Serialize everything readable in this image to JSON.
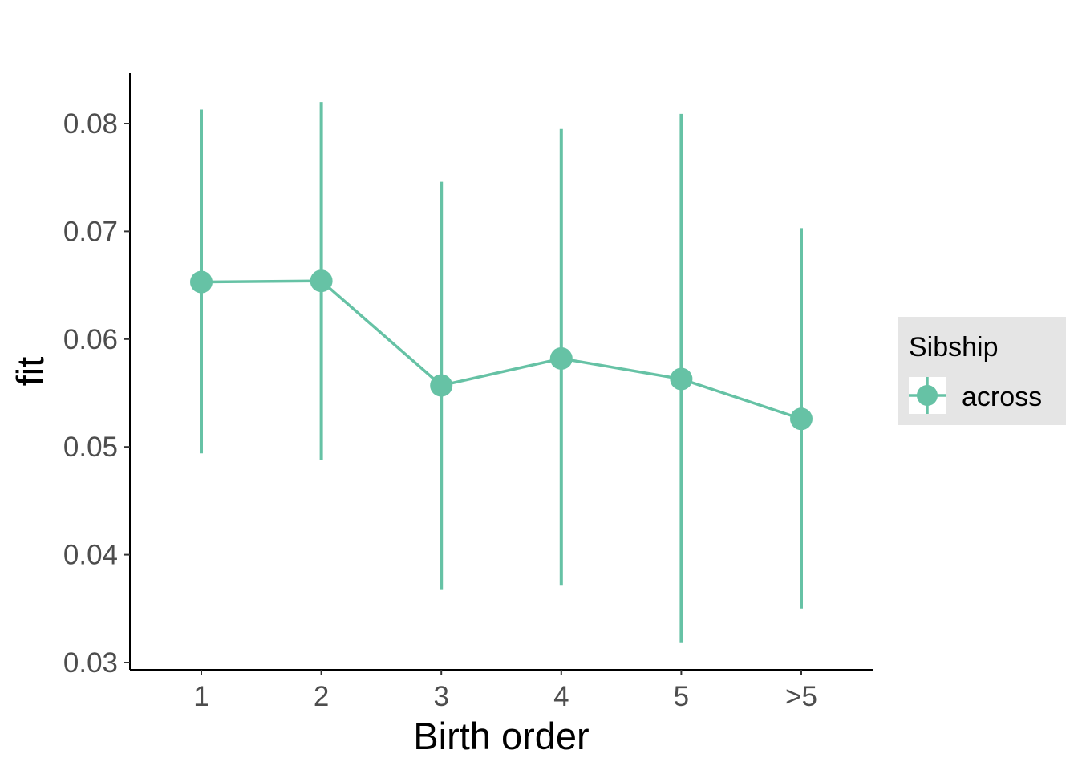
{
  "chart_data": {
    "type": "line",
    "xlabel": "Birth order",
    "ylabel": "fit",
    "categories": [
      "1",
      "2",
      "3",
      "4",
      "5",
      ">5"
    ],
    "ylim": [
      0.029,
      0.0844
    ],
    "yticks": [
      0.03,
      0.04,
      0.05,
      0.06,
      0.07,
      0.08
    ],
    "ytick_labels": [
      "0.03",
      "0.04",
      "0.05",
      "0.06",
      "0.07",
      "0.08"
    ],
    "grid": false,
    "legend": {
      "title": "Sibship",
      "position": "right"
    },
    "series": [
      {
        "name": "across",
        "color": "#66c2a5",
        "values": [
          0.0653,
          0.0654,
          0.0557,
          0.0582,
          0.0563,
          0.0526
        ],
        "lower": [
          0.0494,
          0.0488,
          0.0368,
          0.0372,
          0.0318,
          0.035
        ],
        "upper": [
          0.0813,
          0.082,
          0.0746,
          0.0795,
          0.0809,
          0.0703
        ]
      }
    ]
  }
}
